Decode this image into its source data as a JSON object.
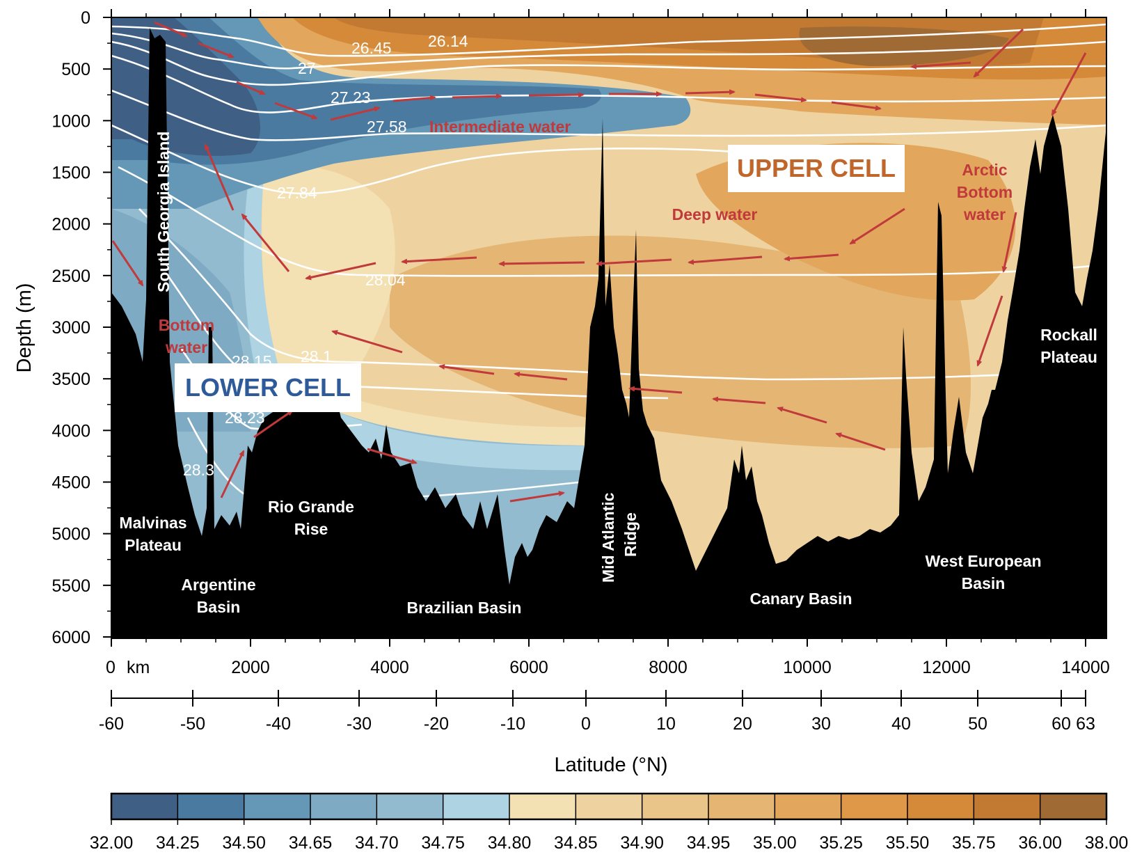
{
  "chart_data": {
    "type": "contour-section",
    "ylabel": "Depth (m)",
    "y_ticks": [
      0,
      500,
      1000,
      1500,
      2000,
      2500,
      3000,
      3500,
      4000,
      4500,
      5000,
      5500,
      6000
    ],
    "ylim": [
      0,
      6000
    ],
    "y_inverted": true,
    "x_unit_label": "km",
    "x_ticks": [
      "0",
      "2000",
      "4000",
      "6000",
      "8000",
      "10000",
      "12000",
      "14000"
    ],
    "xlim": [
      0,
      14300
    ],
    "lat_label": "Latitude (°N)",
    "lat_ticks": [
      {
        "label": "-60",
        "km": 0
      },
      {
        "label": "-50",
        "km": 1170
      },
      {
        "label": "-40",
        "km": 2400
      },
      {
        "label": "-30",
        "km": 3560
      },
      {
        "label": "-20",
        "km": 4670
      },
      {
        "label": "-10",
        "km": 5770
      },
      {
        "label": "0",
        "km": 6820
      },
      {
        "label": "10",
        "km": 7970
      },
      {
        "label": "20",
        "km": 9070
      },
      {
        "label": "30",
        "km": 10200
      },
      {
        "label": "40",
        "km": 11350
      },
      {
        "label": "50",
        "km": 12450
      },
      {
        "label": "60",
        "km": 13650
      },
      {
        "label": "63",
        "km": 14000
      }
    ],
    "colorbar": {
      "boundaries": [
        "32.00",
        "34.25",
        "34.50",
        "34.65",
        "34.70",
        "34.75",
        "34.80",
        "34.85",
        "34.90",
        "34.95",
        "35.00",
        "35.25",
        "35.50",
        "35.75",
        "36.00",
        "38.00"
      ],
      "colors": [
        "#3f5f84",
        "#4a7aa0",
        "#6498b6",
        "#7faac3",
        "#93bbcf",
        "#aed3e3",
        "#f3e0b3",
        "#eed3a0",
        "#e9c58a",
        "#e5b574",
        "#e2a75c",
        "#de9848",
        "#d58a3a",
        "#c27a33",
        "#a06a35"
      ]
    },
    "isopycnal_labels": [
      "26.45",
      "26.14",
      "27",
      "27.23",
      "27.58",
      "27.84",
      "28.04",
      "28.15",
      "28.1",
      "28.23",
      "28.3"
    ],
    "water_mass_labels": {
      "intermediate": "Intermediate water",
      "deep": "Deep water",
      "arctic": [
        "Arctic",
        "Bottom",
        "water"
      ],
      "bottom": [
        "Bottom",
        "water"
      ]
    },
    "cells": {
      "upper": {
        "label": "UPPER CELL",
        "color": "#c0662a"
      },
      "lower": {
        "label": "LOWER CELL",
        "color": "#2e5a9a"
      }
    },
    "features": {
      "south_georgia": "South Georgia Island",
      "malvinas": [
        "Malvinas",
        "Plateau"
      ],
      "argentine": [
        "Argentine",
        "Basin"
      ],
      "rio_grande": [
        "Rio Grande",
        "Rise"
      ],
      "brazilian": "Brazilian Basin",
      "mar": [
        "Mid Atlantic",
        "Ridge"
      ],
      "canary": "Canary Basin",
      "west_european": [
        "West European",
        "Basin"
      ],
      "rockall": [
        "Rockall",
        "Plateau"
      ]
    },
    "arrow_color": "#c0393b"
  }
}
